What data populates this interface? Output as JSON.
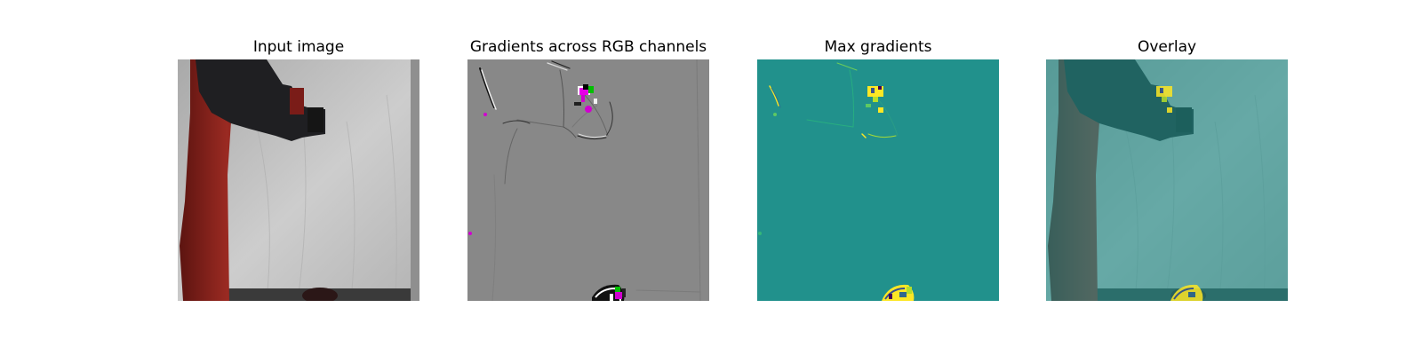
{
  "panels": [
    {
      "title": "Input image"
    },
    {
      "title": "Gradients across RGB channels"
    },
    {
      "title": "Max gradients"
    },
    {
      "title": "Overlay"
    }
  ],
  "colors": {
    "background": "#ffffff",
    "gradient_neutral_gray": "#888888",
    "max_gradient_teal": "#21918c",
    "highlight_yellow": "#fde725",
    "gradient_magenta": "#d500d5",
    "robot_red": "#8a1e1a",
    "backdrop_white": "#c9c9c9"
  }
}
